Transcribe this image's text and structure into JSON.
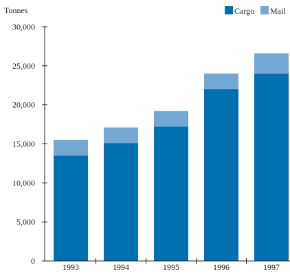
{
  "chart_data": {
    "type": "bar",
    "stacked": true,
    "title": "",
    "xlabel": "",
    "ylabel": "Tonnes",
    "categories": [
      "1993",
      "1994",
      "1995",
      "1996",
      "1997"
    ],
    "series": [
      {
        "name": "Cargo",
        "color": "#0070b0",
        "values": [
          13500,
          15100,
          17200,
          22000,
          24000
        ]
      },
      {
        "name": "Mail",
        "color": "#73a8d2",
        "values": [
          2000,
          2000,
          2000,
          2000,
          2600
        ]
      }
    ],
    "yticks": [
      0,
      5000,
      10000,
      15000,
      20000,
      25000,
      30000
    ],
    "ytick_labels": [
      "0",
      "5,000",
      "10,000",
      "15,000",
      "20,000",
      "25,000",
      "30,000"
    ],
    "ylim": [
      0,
      30000
    ],
    "grid": false,
    "legend": "top-right"
  }
}
